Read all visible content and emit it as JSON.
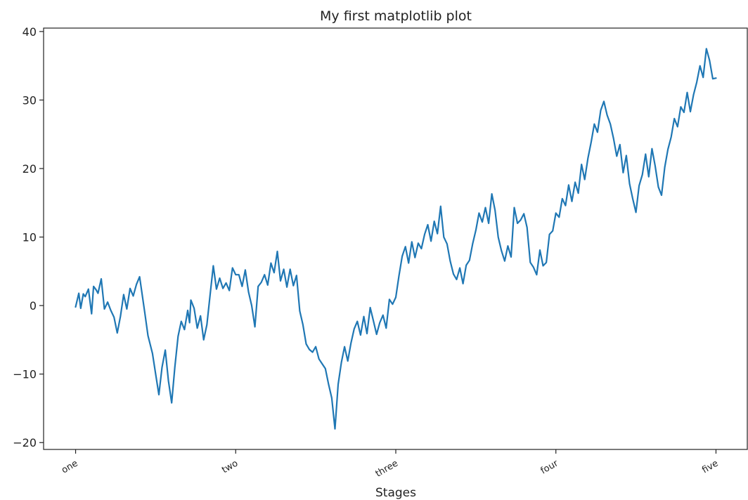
{
  "chart_data": {
    "type": "line",
    "title": "My first matplotlib plot",
    "xlabel": "Stages",
    "ylabel": "",
    "xlim": [
      -50,
      1050
    ],
    "ylim": [
      -21,
      40.5
    ],
    "yticks": [
      -20,
      -10,
      0,
      10,
      20,
      30,
      40
    ],
    "xticks": [
      0,
      250,
      500,
      750,
      1000
    ],
    "xtick_labels": [
      "one",
      "two",
      "three",
      "four",
      "five"
    ],
    "xtick_rotation": 30,
    "grid": false,
    "legend": "none",
    "color": "#1f77b4",
    "series": [
      {
        "x": [
          0,
          5,
          8,
          12,
          15,
          20,
          25,
          28,
          32,
          35,
          40,
          45,
          50,
          55,
          60,
          65,
          70,
          75,
          80,
          85,
          90,
          95,
          100,
          108,
          113,
          120,
          125,
          130,
          135,
          140,
          145,
          150,
          155,
          160,
          165,
          170,
          175,
          178,
          180,
          185,
          190,
          195,
          200,
          205,
          210,
          215,
          220,
          225,
          230,
          235,
          240,
          245,
          250,
          255,
          260,
          265,
          270,
          275,
          280,
          285,
          290,
          295,
          300,
          305,
          310,
          315,
          320,
          325,
          330,
          335,
          340,
          345,
          350,
          355,
          360,
          365,
          370,
          375,
          380,
          385,
          390,
          395,
          400,
          405,
          410,
          415,
          420,
          425,
          430,
          435,
          440,
          445,
          450,
          455,
          460,
          465,
          470,
          475,
          480,
          485,
          490,
          495,
          500,
          505,
          510,
          515,
          520,
          525,
          530,
          535,
          540,
          545,
          550,
          555,
          560,
          565,
          570,
          575,
          580,
          585,
          590,
          595,
          600,
          605,
          610,
          615,
          620,
          625,
          630,
          635,
          640,
          645,
          650,
          655,
          660,
          665,
          670,
          675,
          680,
          685,
          690,
          695,
          700,
          705,
          710,
          715,
          720,
          725,
          730,
          735,
          740,
          745,
          750,
          755,
          760,
          765,
          770,
          775,
          780,
          785,
          790,
          795,
          800,
          805,
          810,
          815,
          820,
          825,
          830,
          835,
          840,
          845,
          850,
          855,
          860,
          865,
          870,
          875,
          880,
          885,
          890,
          895,
          900,
          905,
          910,
          915,
          920,
          925,
          930,
          935,
          940,
          945,
          950,
          955,
          960,
          965,
          970,
          975,
          980,
          985,
          990,
          995,
          1000
        ],
        "y": [
          -0.2,
          1.8,
          -0.4,
          1.7,
          1.3,
          2.4,
          -1.2,
          2.8,
          2.3,
          1.8,
          3.9,
          -0.5,
          0.5,
          -0.7,
          -1.7,
          -4,
          -1.6,
          1.6,
          -0.5,
          2.5,
          1.4,
          3.1,
          4.2,
          -1,
          -4.4,
          -7,
          -10,
          -13,
          -9,
          -6.5,
          -11,
          -14.2,
          -9,
          -4.5,
          -2.3,
          -3.5,
          -0.7,
          -2.5,
          0.8,
          -0.4,
          -3.3,
          -1.5,
          -5,
          -2.8,
          1.5,
          5.8,
          2.4,
          4,
          2.5,
          3.3,
          2.2,
          5.5,
          4.5,
          4.5,
          2.8,
          5.2,
          2,
          0,
          -3.1,
          2.8,
          3.4,
          4.5,
          3,
          6.2,
          4.8,
          7.9,
          3.6,
          5.3,
          2.7,
          5.3,
          2.9,
          4.4,
          -0.8,
          -2.8,
          -5.6,
          -6.4,
          -6.8,
          -6,
          -7.8,
          -8.5,
          -9.2,
          -11.5,
          -13.5,
          -18,
          -11.5,
          -8.3,
          -6,
          -8.1,
          -5.5,
          -3.4,
          -2.3,
          -4.3,
          -1.6,
          -4.1,
          -0.3,
          -2.2,
          -4.2,
          -2.5,
          -1.4,
          -3.3,
          0.9,
          0.2,
          1.2,
          4.4,
          7.2,
          8.6,
          6.2,
          9.3,
          7,
          9.1,
          8.3,
          10.4,
          11.8,
          9.4,
          12.3,
          10.5,
          14.5,
          10,
          9,
          6.5,
          4.6,
          3.8,
          5.5,
          3.2,
          5.9,
          6.6,
          9,
          11,
          13.5,
          12.2,
          14.3,
          12,
          16.3,
          13.9,
          10,
          8,
          6.5,
          8.7,
          7.1,
          14.3,
          12,
          12.5,
          13.4,
          11.4,
          6.3,
          5.6,
          4.5,
          8.1,
          5.8,
          6.3,
          10.4,
          10.9,
          13.5,
          12.9,
          15.6,
          14.6,
          17.6,
          15.2,
          18,
          16.4,
          20.6,
          18.4,
          21.5,
          23.8,
          26.5,
          25.3,
          28.5,
          29.8,
          27.8,
          26.5,
          24.4,
          21.8,
          23.5,
          19.4,
          21.9,
          17.8,
          15.6,
          13.6,
          17.5,
          19.1,
          22.1,
          18.8,
          22.9,
          20.4,
          17.3,
          16.1,
          20.2,
          22.8,
          24.6,
          27.3,
          26.1,
          29,
          28.2,
          31.1,
          28.3,
          30.8,
          32.6,
          35,
          33.3,
          37.5,
          35.8,
          33.1,
          33.2
        ]
      }
    ]
  }
}
